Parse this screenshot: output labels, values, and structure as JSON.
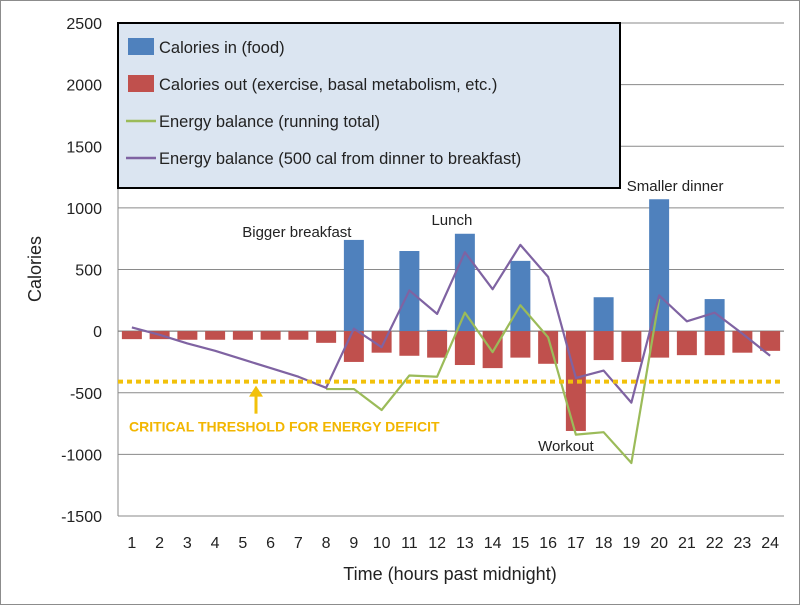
{
  "chart_data": {
    "type": "bar",
    "xlabel": "Time (hours past midnight)",
    "ylabel": "Calories",
    "ylim": [
      -1500,
      2500
    ],
    "yticks": [
      2500,
      2000,
      1500,
      1000,
      500,
      0,
      -500,
      -1000,
      -1500
    ],
    "grid": true,
    "legend_placement": "top-left",
    "categories": [
      "1",
      "2",
      "3",
      "4",
      "5",
      "6",
      "7",
      "8",
      "9",
      "10",
      "11",
      "12",
      "13",
      "14",
      "15",
      "16",
      "17",
      "18",
      "19",
      "20",
      "21",
      "22",
      "23",
      "24"
    ],
    "series": [
      {
        "name": "Calories in (food)",
        "kind": "bar",
        "color": "#4f81bd",
        "values": [
          0,
          0,
          0,
          0,
          0,
          0,
          0,
          0,
          740,
          0,
          650,
          10,
          790,
          0,
          570,
          0,
          0,
          275,
          0,
          1070,
          0,
          260,
          0,
          0
        ]
      },
      {
        "name": "Calories out (exercise, basal metabolism, etc.)",
        "kind": "bar",
        "color": "#c0504d",
        "values": [
          -65,
          -65,
          -70,
          -70,
          -70,
          -70,
          -70,
          -95,
          -250,
          -175,
          -200,
          -215,
          -275,
          -300,
          -215,
          -265,
          -810,
          -235,
          -250,
          -215,
          -195,
          -195,
          -175,
          -160
        ]
      },
      {
        "name": "Energy balance (running total)",
        "kind": "line",
        "color": "#9bbb59",
        "values": [
          null,
          null,
          null,
          null,
          null,
          null,
          null,
          -470,
          -470,
          -640,
          -360,
          -370,
          150,
          -170,
          210,
          -50,
          -840,
          -820,
          -1070,
          260,
          null,
          null,
          null,
          null
        ]
      },
      {
        "name": "Energy balance (500 cal from dinner to breakfast)",
        "kind": "line",
        "color": "#7f63a2",
        "values": [
          30,
          -30,
          -100,
          -160,
          -230,
          -300,
          -370,
          -460,
          20,
          -130,
          330,
          140,
          640,
          340,
          700,
          440,
          -380,
          -320,
          -580,
          290,
          80,
          150,
          -20,
          -200
        ]
      }
    ],
    "threshold": {
      "value": -410,
      "color": "#f2c10a",
      "label": "CRITICAL THRESHOLD FOR ENERGY DEFICIT"
    },
    "annotations": [
      {
        "text": "Bigger breakfast",
        "x": 9
      },
      {
        "text": "Lunch",
        "x": 13
      },
      {
        "text": "Workout",
        "x": 17
      },
      {
        "text": "Smaller dinner",
        "x": 20
      }
    ]
  }
}
